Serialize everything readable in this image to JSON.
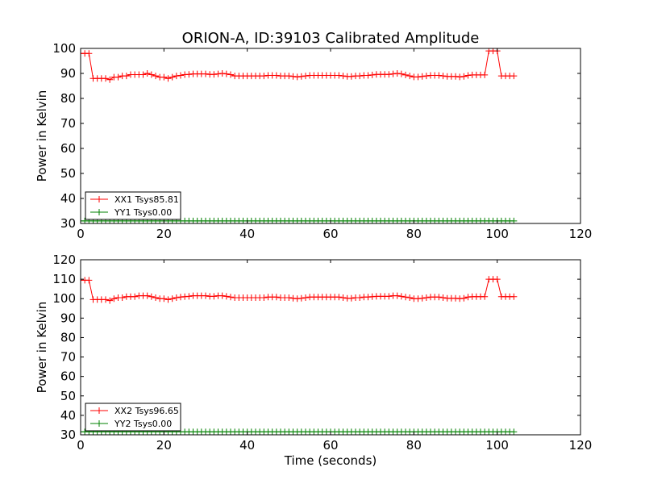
{
  "chart_data": [
    {
      "type": "line",
      "title": "ORION-A, ID:39103 Calibrated Amplitude",
      "xlabel": "",
      "ylabel": "Power in Kelvin",
      "xlim": [
        0,
        120
      ],
      "ylim": [
        30,
        100
      ],
      "xticks": [
        "0",
        "20",
        "40",
        "60",
        "80",
        "100",
        "120"
      ],
      "yticks": [
        "30",
        "40",
        "50",
        "60",
        "70",
        "80",
        "90",
        "100"
      ],
      "legend_position": "lower-left",
      "grid": false,
      "series": [
        {
          "name": "XX1 Tsys85.81",
          "color": "#ff0000",
          "marker": "plus",
          "x": [
            0,
            1,
            2,
            3,
            4,
            5,
            6,
            7,
            8,
            9,
            10,
            11,
            12,
            13,
            14,
            15,
            16,
            17,
            18,
            19,
            20,
            21,
            22,
            23,
            24,
            25,
            26,
            27,
            28,
            29,
            30,
            31,
            32,
            33,
            34,
            35,
            36,
            37,
            38,
            39,
            40,
            41,
            42,
            43,
            44,
            45,
            46,
            47,
            48,
            49,
            50,
            51,
            52,
            53,
            54,
            55,
            56,
            57,
            58,
            59,
            60,
            61,
            62,
            63,
            64,
            65,
            66,
            67,
            68,
            69,
            70,
            71,
            72,
            73,
            74,
            75,
            76,
            77,
            78,
            79,
            80,
            81,
            82,
            83,
            84,
            85,
            86,
            87,
            88,
            89,
            90,
            91,
            92,
            93,
            94,
            95,
            96,
            97,
            98,
            99,
            100,
            101,
            102,
            103,
            104
          ],
          "y": [
            98,
            98,
            98,
            88,
            88,
            88,
            88,
            87.5,
            88.5,
            88.5,
            89,
            89,
            89.5,
            89.5,
            89.5,
            89.5,
            90,
            89.5,
            89,
            88.5,
            88.5,
            88,
            88.5,
            89,
            89.2,
            89.5,
            89.6,
            89.8,
            89.8,
            89.8,
            89.8,
            89.6,
            89.6,
            89.8,
            90,
            89.8,
            89.5,
            89,
            89,
            89,
            89,
            89,
            89,
            89,
            89,
            89.2,
            89.2,
            89.2,
            89,
            89,
            89,
            88.8,
            88.6,
            88.8,
            89,
            89.2,
            89.2,
            89.2,
            89.2,
            89.2,
            89.2,
            89.2,
            89.2,
            89,
            88.8,
            88.8,
            89,
            89,
            89.2,
            89.2,
            89.4,
            89.6,
            89.6,
            89.6,
            89.6,
            89.8,
            90,
            89.8,
            89.4,
            89,
            88.6,
            88.6,
            88.8,
            89,
            89.2,
            89.2,
            89.2,
            89,
            88.8,
            88.8,
            88.8,
            88.6,
            88.8,
            89.2,
            89.4,
            89.4,
            89.4,
            89.4,
            99,
            99,
            99,
            89,
            89,
            89,
            89
          ]
        },
        {
          "name": "YY1 Tsys0.00",
          "color": "#008000",
          "marker": "plus",
          "x": [
            0,
            1,
            2,
            3,
            4,
            5,
            6,
            7,
            8,
            9,
            10,
            11,
            12,
            13,
            14,
            15,
            16,
            17,
            18,
            19,
            20,
            21,
            22,
            23,
            24,
            25,
            26,
            27,
            28,
            29,
            30,
            31,
            32,
            33,
            34,
            35,
            36,
            37,
            38,
            39,
            40,
            41,
            42,
            43,
            44,
            45,
            46,
            47,
            48,
            49,
            50,
            51,
            52,
            53,
            54,
            55,
            56,
            57,
            58,
            59,
            60,
            61,
            62,
            63,
            64,
            65,
            66,
            67,
            68,
            69,
            70,
            71,
            72,
            73,
            74,
            75,
            76,
            77,
            78,
            79,
            80,
            81,
            82,
            83,
            84,
            85,
            86,
            87,
            88,
            89,
            90,
            91,
            92,
            93,
            94,
            95,
            96,
            97,
            98,
            99,
            100,
            101,
            102,
            103,
            104
          ],
          "y": [
            31,
            31,
            31,
            31,
            31,
            31,
            31,
            31,
            31,
            31,
            31,
            31,
            31,
            31,
            31,
            31,
            31,
            31,
            31,
            31,
            31,
            31,
            31,
            31,
            31,
            31,
            31,
            31,
            31,
            31,
            31,
            31,
            31,
            31,
            31,
            31,
            31,
            31,
            31,
            31,
            31,
            31,
            31,
            31,
            31,
            31,
            31,
            31,
            31,
            31,
            31,
            31,
            31,
            31,
            31,
            31,
            31,
            31,
            31,
            31,
            31,
            31,
            31,
            31,
            31,
            31,
            31,
            31,
            31,
            31,
            31,
            31,
            31,
            31,
            31,
            31,
            31,
            31,
            31,
            31,
            31,
            31,
            31,
            31,
            31,
            31,
            31,
            31,
            31,
            31,
            31,
            31,
            31,
            31,
            31,
            31,
            31,
            31,
            31,
            31,
            31,
            31,
            31,
            31,
            31
          ]
        }
      ]
    },
    {
      "type": "line",
      "title": "",
      "xlabel": "Time (seconds)",
      "ylabel": "Power in Kelvin",
      "xlim": [
        0,
        120
      ],
      "ylim": [
        30,
        120
      ],
      "xticks": [
        "0",
        "20",
        "40",
        "60",
        "80",
        "100",
        "120"
      ],
      "yticks": [
        "30",
        "40",
        "50",
        "60",
        "70",
        "80",
        "90",
        "100",
        "110",
        "120"
      ],
      "legend_position": "lower-left",
      "grid": false,
      "series": [
        {
          "name": "XX2 Tsys96.65",
          "color": "#ff0000",
          "marker": "plus",
          "x": [
            0,
            1,
            2,
            3,
            4,
            5,
            6,
            7,
            8,
            9,
            10,
            11,
            12,
            13,
            14,
            15,
            16,
            17,
            18,
            19,
            20,
            21,
            22,
            23,
            24,
            25,
            26,
            27,
            28,
            29,
            30,
            31,
            32,
            33,
            34,
            35,
            36,
            37,
            38,
            39,
            40,
            41,
            42,
            43,
            44,
            45,
            46,
            47,
            48,
            49,
            50,
            51,
            52,
            53,
            54,
            55,
            56,
            57,
            58,
            59,
            60,
            61,
            62,
            63,
            64,
            65,
            66,
            67,
            68,
            69,
            70,
            71,
            72,
            73,
            74,
            75,
            76,
            77,
            78,
            79,
            80,
            81,
            82,
            83,
            84,
            85,
            86,
            87,
            88,
            89,
            90,
            91,
            92,
            93,
            94,
            95,
            96,
            97,
            98,
            99,
            100,
            101,
            102,
            103,
            104
          ],
          "y": [
            109.5,
            109.5,
            109.5,
            99.5,
            99.5,
            99.5,
            99.5,
            99,
            100,
            100.5,
            100.5,
            101,
            101,
            101,
            101.5,
            101.5,
            101.5,
            101,
            100.5,
            100,
            100,
            99.5,
            100,
            100.5,
            100.8,
            101,
            101.2,
            101.5,
            101.5,
            101.5,
            101.5,
            101.2,
            101.2,
            101.5,
            101.5,
            101.2,
            100.8,
            100.5,
            100.5,
            100.5,
            100.5,
            100.5,
            100.5,
            100.5,
            100.5,
            100.8,
            100.8,
            100.8,
            100.5,
            100.5,
            100.5,
            100.2,
            100,
            100.2,
            100.5,
            100.8,
            100.8,
            100.8,
            100.8,
            100.8,
            100.8,
            100.8,
            100.8,
            100.5,
            100.2,
            100.2,
            100.5,
            100.5,
            100.8,
            100.8,
            101,
            101.2,
            101.2,
            101.2,
            101.2,
            101.5,
            101.5,
            101.2,
            100.8,
            100.5,
            100,
            100,
            100.2,
            100.5,
            100.8,
            100.8,
            100.8,
            100.5,
            100.2,
            100.2,
            100.2,
            100,
            100.2,
            100.8,
            101,
            101,
            101,
            101,
            110,
            110,
            110,
            101,
            101,
            101,
            101
          ]
        },
        {
          "name": "YY2 Tsys0.00",
          "color": "#008000",
          "marker": "plus",
          "x": [
            0,
            1,
            2,
            3,
            4,
            5,
            6,
            7,
            8,
            9,
            10,
            11,
            12,
            13,
            14,
            15,
            16,
            17,
            18,
            19,
            20,
            21,
            22,
            23,
            24,
            25,
            26,
            27,
            28,
            29,
            30,
            31,
            32,
            33,
            34,
            35,
            36,
            37,
            38,
            39,
            40,
            41,
            42,
            43,
            44,
            45,
            46,
            47,
            48,
            49,
            50,
            51,
            52,
            53,
            54,
            55,
            56,
            57,
            58,
            59,
            60,
            61,
            62,
            63,
            64,
            65,
            66,
            67,
            68,
            69,
            70,
            71,
            72,
            73,
            74,
            75,
            76,
            77,
            78,
            79,
            80,
            81,
            82,
            83,
            84,
            85,
            86,
            87,
            88,
            89,
            90,
            91,
            92,
            93,
            94,
            95,
            96,
            97,
            98,
            99,
            100,
            101,
            102,
            103,
            104
          ],
          "y": [
            31.5,
            31.5,
            31.5,
            31.5,
            31.5,
            31.5,
            31.5,
            31.5,
            31.5,
            31.5,
            31.5,
            31.5,
            31.5,
            31.5,
            31.5,
            31.5,
            31.5,
            31.5,
            31.5,
            31.5,
            31.5,
            31.5,
            31.5,
            31.5,
            31.5,
            31.5,
            31.5,
            31.5,
            31.5,
            31.5,
            31.5,
            31.5,
            31.5,
            31.5,
            31.5,
            31.5,
            31.5,
            31.5,
            31.5,
            31.5,
            31.5,
            31.5,
            31.5,
            31.5,
            31.5,
            31.5,
            31.5,
            31.5,
            31.5,
            31.5,
            31.5,
            31.5,
            31.5,
            31.5,
            31.5,
            31.5,
            31.5,
            31.5,
            31.5,
            31.5,
            31.5,
            31.5,
            31.5,
            31.5,
            31.5,
            31.5,
            31.5,
            31.5,
            31.5,
            31.5,
            31.5,
            31.5,
            31.5,
            31.5,
            31.5,
            31.5,
            31.5,
            31.5,
            31.5,
            31.5,
            31.5,
            31.5,
            31.5,
            31.5,
            31.5,
            31.5,
            31.5,
            31.5,
            31.5,
            31.5,
            31.5,
            31.5,
            31.5,
            31.5,
            31.5,
            31.5,
            31.5,
            31.5,
            31.5,
            31.5,
            31.5,
            31.5,
            31.5,
            31.5,
            31.5
          ]
        }
      ]
    }
  ]
}
